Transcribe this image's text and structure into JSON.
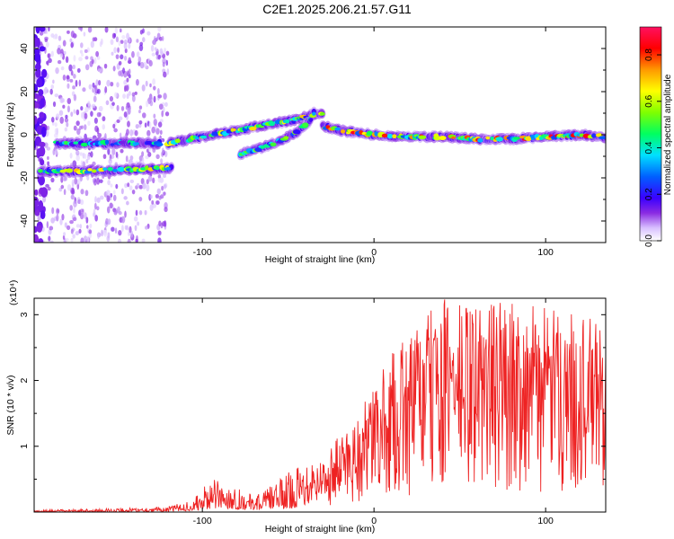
{
  "title": "C2E1.2025.206.21.57.G11",
  "chart_data": [
    {
      "type": "heatmap",
      "xlabel": "Height of straight line (km)",
      "ylabel": "Frequency (Hz)",
      "xlim": [
        -198,
        135
      ],
      "ylim": [
        -50,
        50
      ],
      "xticks": [
        -100,
        0,
        100
      ],
      "yticks": [
        -40,
        -20,
        0,
        20,
        40
      ],
      "colorbar": {
        "label": "Normalized spectral amplitude",
        "range": [
          0,
          0.92
        ],
        "ticks": [
          0.0,
          0.2,
          0.4,
          0.6,
          0.8
        ]
      },
      "traces": [
        {
          "x": [
            -185,
            -165,
            -145,
            -125
          ],
          "y": [
            -4,
            -4,
            -4,
            -4
          ],
          "amplitude": 0.3
        },
        {
          "x": [
            -120,
            -100,
            -80,
            -60,
            -45,
            -38,
            -30
          ],
          "y": [
            -4,
            -1,
            2,
            5,
            7,
            9,
            10
          ],
          "amplitude": 0.4
        },
        {
          "x": [
            -78,
            -65,
            -55,
            -45,
            -38,
            -35
          ],
          "y": [
            -9,
            -6,
            -3,
            1,
            6,
            10
          ],
          "amplitude": 0.35
        },
        {
          "x": [
            -30,
            -20,
            0,
            20,
            40,
            60,
            80,
            100,
            120,
            135
          ],
          "y": [
            4,
            2,
            0,
            -1,
            -1,
            -2,
            -2,
            -1,
            0,
            -1
          ],
          "amplitude": 0.5
        },
        {
          "x": [
            -195,
            -175,
            -155,
            -135,
            -118
          ],
          "y": [
            -17,
            -17,
            -16.5,
            -16,
            -15.5
          ],
          "amplitude": 0.4
        }
      ]
    },
    {
      "type": "line",
      "xlabel": "Height of straight line (km)",
      "ylabel": "SNR (10 * v/v)",
      "multiplier": "(x10⁴)",
      "color": "#ee2222",
      "xlim": [
        -198,
        135
      ],
      "ylim": [
        0,
        3.25
      ],
      "xticks": [
        -100,
        0,
        100
      ],
      "yticks": [
        1,
        2,
        3
      ],
      "envelope": {
        "x": [
          -198,
          -160,
          -120,
          -105,
          -95,
          -85,
          -70,
          -60,
          -50,
          -40,
          -30,
          -20,
          -10,
          0,
          10,
          20,
          30,
          40,
          60,
          80,
          100,
          120,
          135
        ],
        "lo": [
          0,
          0,
          0.01,
          0.02,
          0.05,
          0.05,
          0.03,
          0.05,
          0.05,
          0.1,
          0.1,
          0.1,
          0.1,
          0.2,
          0.2,
          0.2,
          0.3,
          0.3,
          0.3,
          0.3,
          0.3,
          0.3,
          0.3
        ],
        "hi": [
          0.03,
          0.05,
          0.08,
          0.2,
          0.5,
          0.45,
          0.25,
          0.4,
          0.6,
          0.8,
          0.8,
          1.2,
          1.5,
          1.9,
          2.4,
          2.7,
          3.0,
          3.25,
          3.2,
          3.25,
          3.1,
          3.0,
          2.9
        ]
      }
    }
  ]
}
